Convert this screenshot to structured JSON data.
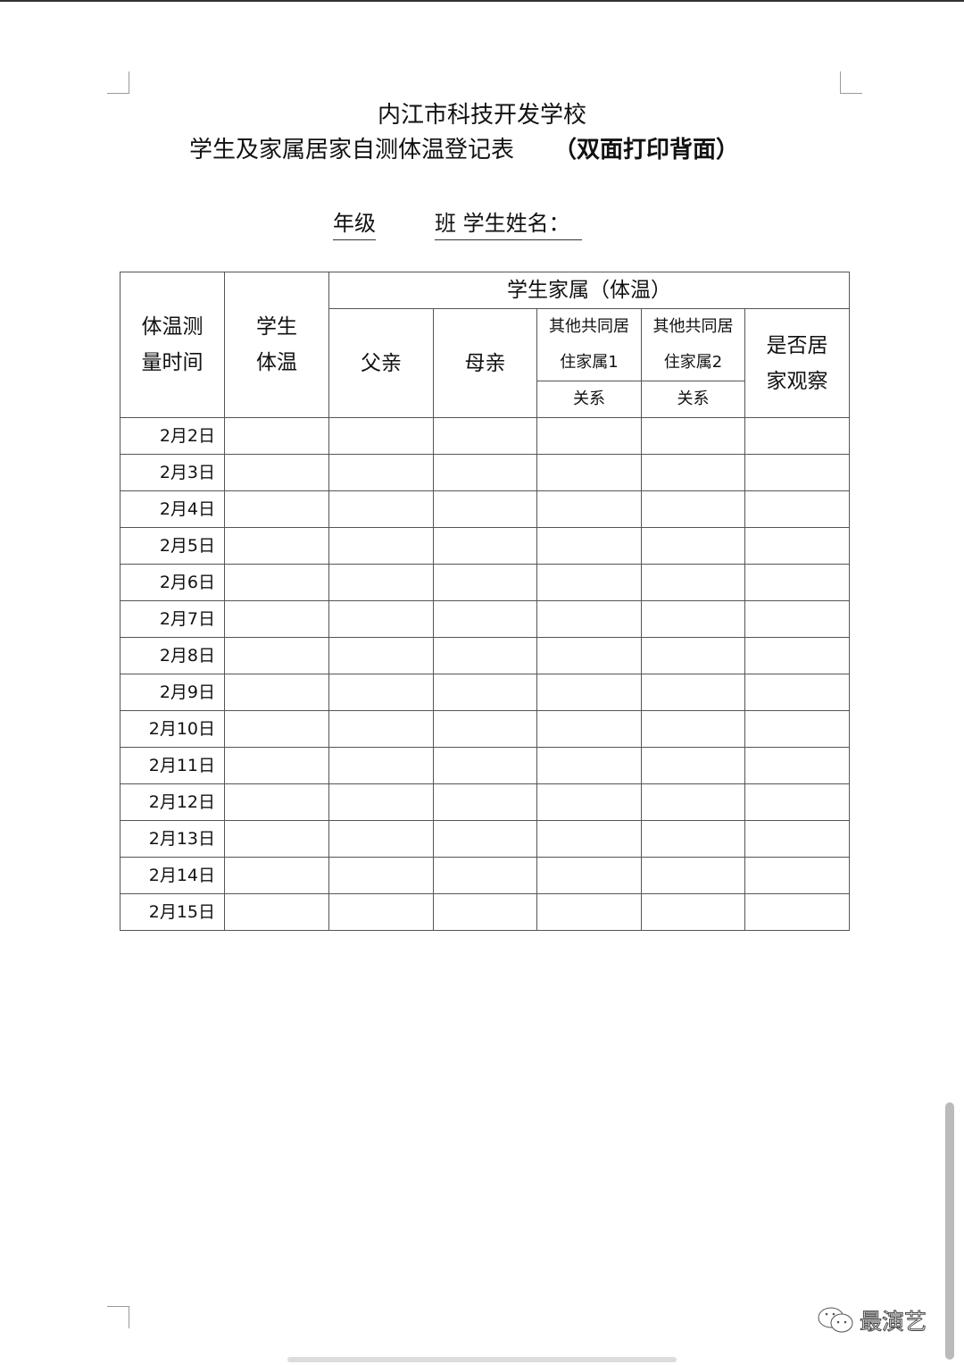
{
  "title": {
    "line1": "内江市科技开发学校",
    "line2": "学生及家属居家自测体温登记表",
    "line2_note": "（双面打印背面）"
  },
  "fields": {
    "grade": "年级",
    "class_name": "班  学生姓名："
  },
  "table": {
    "headers": {
      "time": "体温测量时间",
      "student_temp": "学生体温",
      "family_group": "学生家属（体温）",
      "father": "父亲",
      "mother": "母亲",
      "other1": "其他共同居住家属1",
      "other2": "其他共同居住家属2",
      "relation1": "关系",
      "relation2": "关系",
      "home_observation": "是否居家观察"
    },
    "dates": [
      "2月2日",
      "2月3日",
      "2月4日",
      "2月5日",
      "2月6日",
      "2月7日",
      "2月8日",
      "2月9日",
      "2月10日",
      "2月11日",
      "2月12日",
      "2月13日",
      "2月14日",
      "2月15日"
    ]
  },
  "watermark": {
    "icon": "wechat-icon",
    "text": "最演艺"
  }
}
